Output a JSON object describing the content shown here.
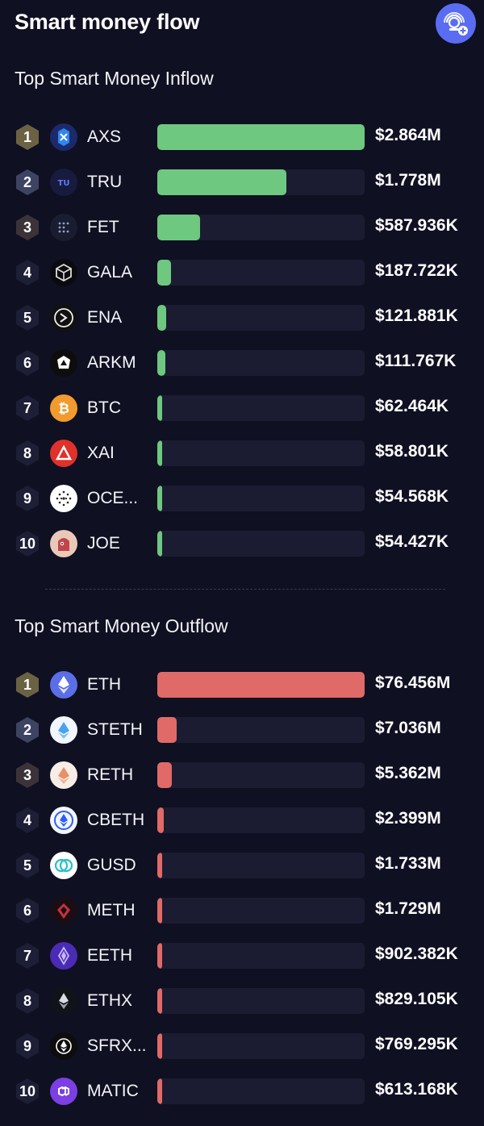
{
  "header": {
    "title": "Smart money flow",
    "action_icon": "add-watch-icon"
  },
  "colors": {
    "inflow": "#6ec880",
    "outflow": "#e06a67",
    "background": "#0f1022",
    "track": "#1b1c31"
  },
  "inflow": {
    "title": "Top Smart Money Inflow",
    "max_value": 2864000,
    "rows": [
      {
        "rank": "1",
        "symbol": "AXS",
        "value": "$2.864M",
        "amount": 2864000,
        "icon": "axs-icon"
      },
      {
        "rank": "2",
        "symbol": "TRU",
        "value": "$1.778M",
        "amount": 1778000,
        "icon": "tru-icon"
      },
      {
        "rank": "3",
        "symbol": "FET",
        "value": "$587.936K",
        "amount": 587936,
        "icon": "fet-icon"
      },
      {
        "rank": "4",
        "symbol": "GALA",
        "value": "$187.722K",
        "amount": 187722,
        "icon": "gala-icon"
      },
      {
        "rank": "5",
        "symbol": "ENA",
        "value": "$121.881K",
        "amount": 121881,
        "icon": "ena-icon"
      },
      {
        "rank": "6",
        "symbol": "ARKM",
        "value": "$111.767K",
        "amount": 111767,
        "icon": "arkm-icon"
      },
      {
        "rank": "7",
        "symbol": "BTC",
        "value": "$62.464K",
        "amount": 62464,
        "icon": "btc-icon"
      },
      {
        "rank": "8",
        "symbol": "XAI",
        "value": "$58.801K",
        "amount": 58801,
        "icon": "xai-icon"
      },
      {
        "rank": "9",
        "symbol": "OCE...",
        "value": "$54.568K",
        "amount": 54568,
        "icon": "ocean-icon"
      },
      {
        "rank": "10",
        "symbol": "JOE",
        "value": "$54.427K",
        "amount": 54427,
        "icon": "joe-icon"
      }
    ]
  },
  "outflow": {
    "title": "Top Smart Money Outflow",
    "max_value": 76456000,
    "rows": [
      {
        "rank": "1",
        "symbol": "ETH",
        "value": "$76.456M",
        "amount": 76456000,
        "icon": "eth-icon"
      },
      {
        "rank": "2",
        "symbol": "STETH",
        "value": "$7.036M",
        "amount": 7036000,
        "icon": "steth-icon"
      },
      {
        "rank": "3",
        "symbol": "RETH",
        "value": "$5.362M",
        "amount": 5362000,
        "icon": "reth-icon"
      },
      {
        "rank": "4",
        "symbol": "CBETH",
        "value": "$2.399M",
        "amount": 2399000,
        "icon": "cbeth-icon"
      },
      {
        "rank": "5",
        "symbol": "GUSD",
        "value": "$1.733M",
        "amount": 1733000,
        "icon": "gusd-icon"
      },
      {
        "rank": "6",
        "symbol": "METH",
        "value": "$1.729M",
        "amount": 1729000,
        "icon": "meth-icon"
      },
      {
        "rank": "7",
        "symbol": "EETH",
        "value": "$902.382K",
        "amount": 902382,
        "icon": "eeth-icon"
      },
      {
        "rank": "8",
        "symbol": "ETHX",
        "value": "$829.105K",
        "amount": 829105,
        "icon": "ethx-icon"
      },
      {
        "rank": "9",
        "symbol": "SFRX...",
        "value": "$769.295K",
        "amount": 769295,
        "icon": "sfrxeth-icon"
      },
      {
        "rank": "10",
        "symbol": "MATIC",
        "value": "$613.168K",
        "amount": 613168,
        "icon": "matic-icon"
      }
    ]
  }
}
